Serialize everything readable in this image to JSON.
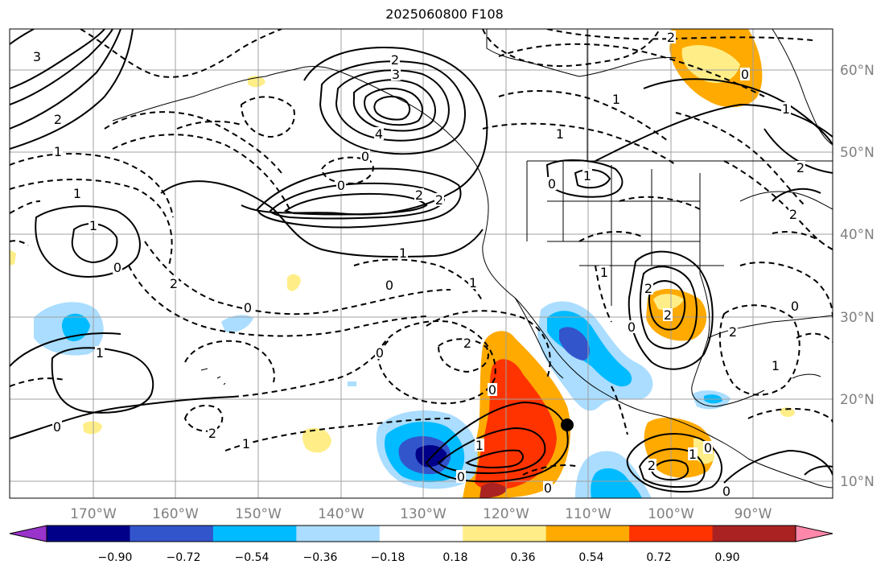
{
  "title": "2025060800 F108",
  "longitude_labels": [
    "170°W",
    "160°W",
    "150°W",
    "140°W",
    "130°W",
    "120°W",
    "110°W",
    "100°W",
    "90°W"
  ],
  "latitude_labels": [
    "60°N",
    "50°N",
    "40°N",
    "30°N",
    "20°N",
    "10°N"
  ],
  "colorbar": {
    "colors": [
      "#9933cc",
      "#000088",
      "#3355cc",
      "#00bbff",
      "#aaddff",
      "#ffffff",
      "#ffee88",
      "#ffaa00",
      "#ff3300",
      "#aa2222",
      "#ff88aa"
    ],
    "tick_labels": [
      "−0.90",
      "−0.72",
      "−0.54",
      "−0.36",
      "−0.18",
      "0.18",
      "0.36",
      "0.54",
      "0.72",
      "0.90"
    ]
  },
  "contour_labels": [
    {
      "text": "4"
    },
    {
      "text": "3"
    },
    {
      "text": "2"
    },
    {
      "text": "1"
    },
    {
      "text": "0"
    },
    {
      "text": "−1"
    },
    {
      "text": "−2"
    }
  ],
  "marker": {
    "label": "storm-center-dot",
    "lon": -111.0,
    "lat": 17.0
  }
}
